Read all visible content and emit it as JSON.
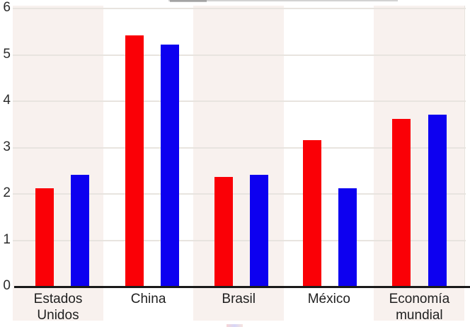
{
  "chart_data": {
    "type": "bar",
    "title": "",
    "xlabel": "",
    "ylabel": "",
    "categories": [
      "Estados Unidos",
      "China",
      "Brasil",
      "México",
      "Economía mundial"
    ],
    "series": [
      {
        "name": "red_bars",
        "color": "#fa0006",
        "values": [
          2.1,
          5.4,
          2.35,
          3.15,
          3.6
        ]
      },
      {
        "name": "blue_bars",
        "color": "#0d00f0",
        "values": [
          2.4,
          5.2,
          2.4,
          2.1,
          3.7
        ]
      }
    ],
    "ylim": [
      0,
      6
    ],
    "yticks": [
      0,
      1,
      2,
      3,
      4,
      5,
      6
    ],
    "grid": "horizontal integer gridlines",
    "legend_position": "none visible (cropped out of frame)",
    "background_stripes": "alternating vertical bands behind category groups, pink on odd groups"
  },
  "colors": {
    "red_bar": "#fa0006",
    "blue_bar": "#0d00f0",
    "stripe_pink": "#f8f1ee",
    "stripe_white": "#ffffff",
    "gridline": "#e8e4df",
    "axis_line": "#1a1a1a",
    "tick_text": "#2b2b2b",
    "label_text": "#1f1f1f"
  }
}
